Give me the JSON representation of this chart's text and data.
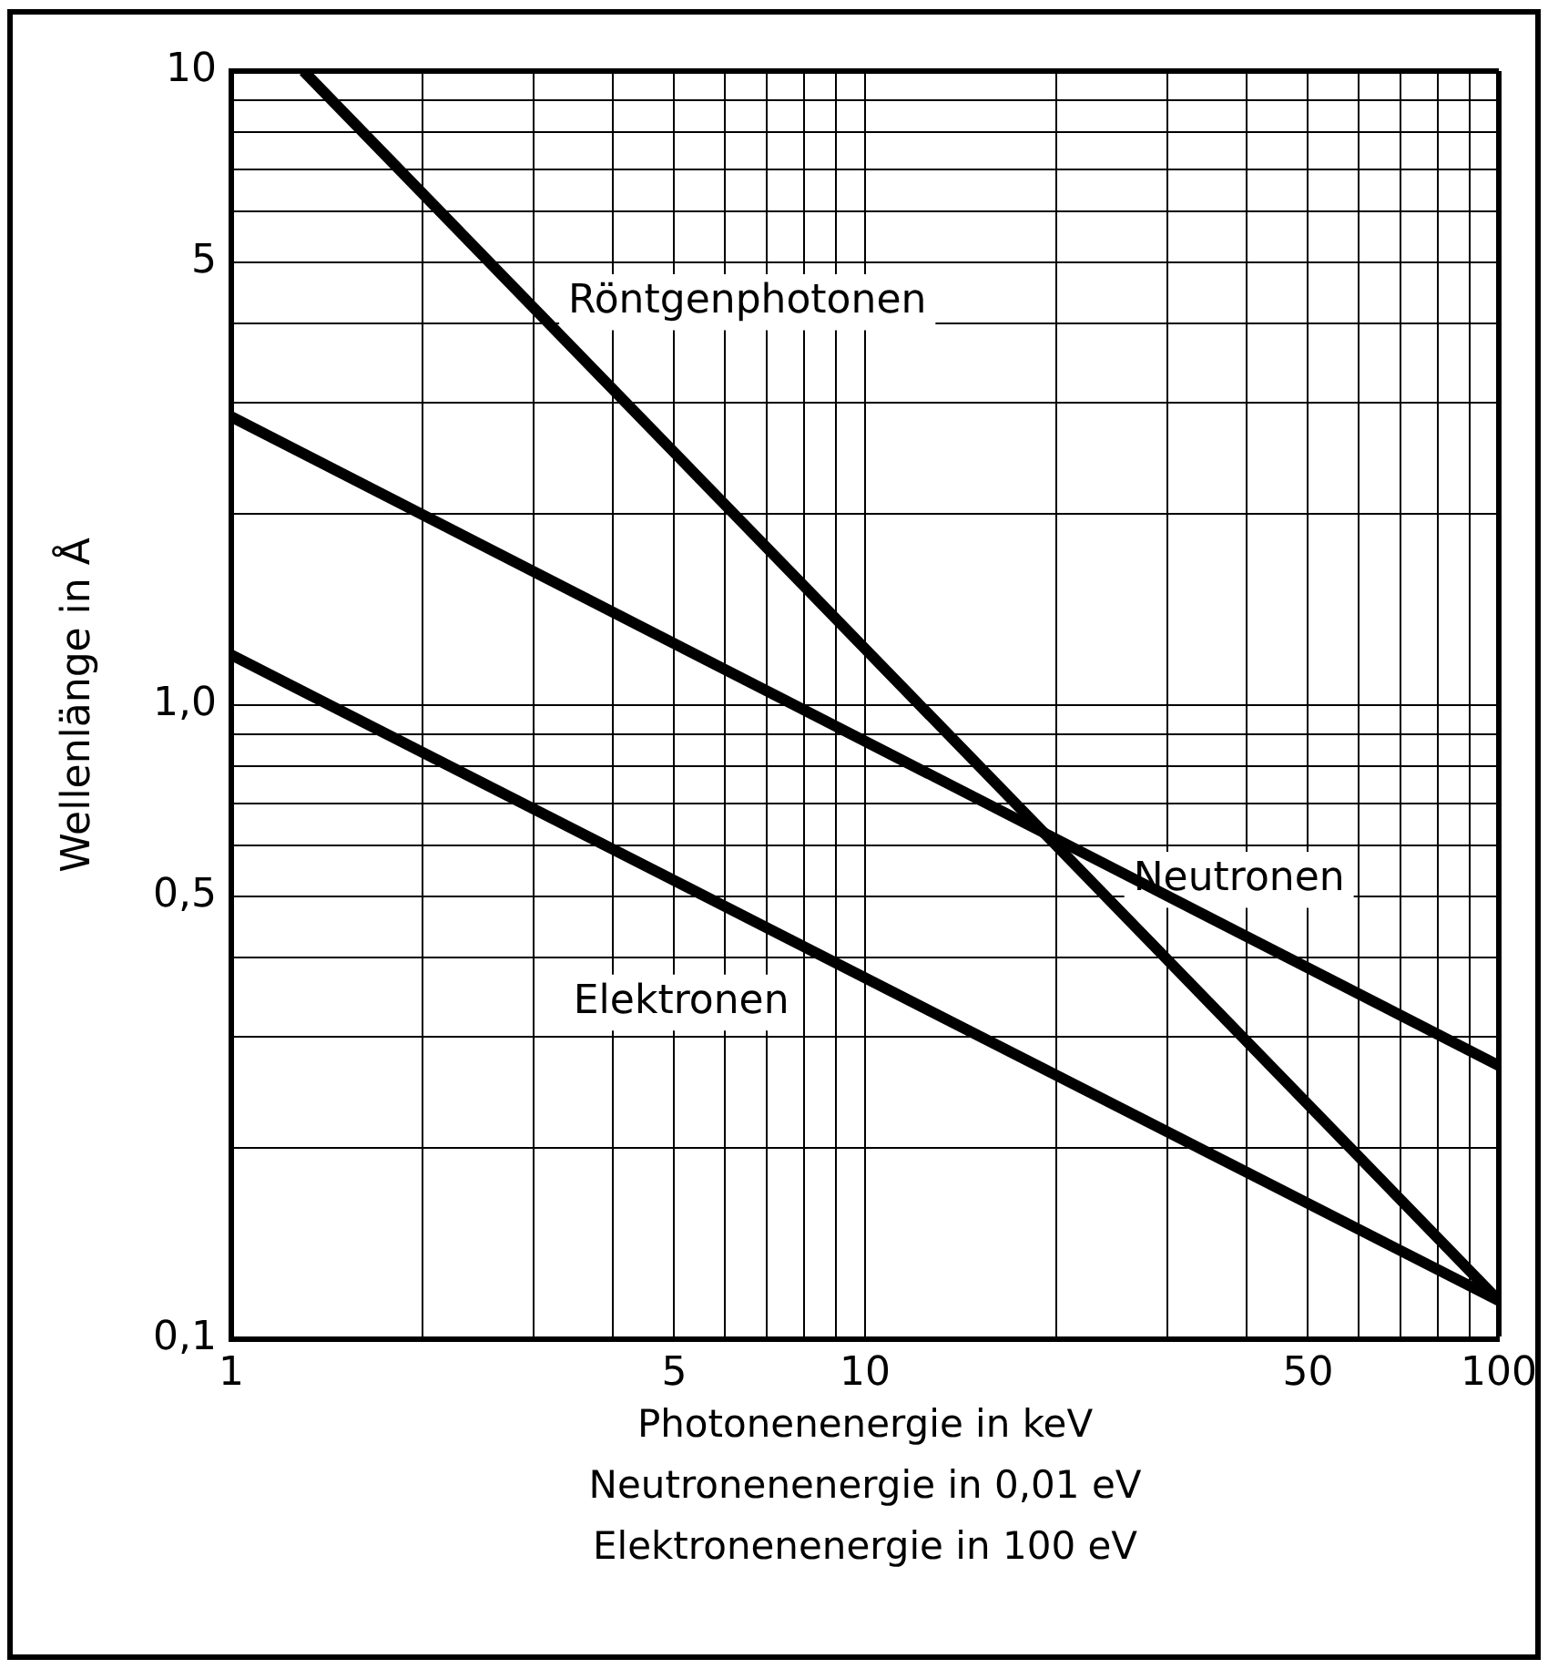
{
  "chart_data": {
    "type": "line",
    "xlabel": "Photonenenergie in keV\nNeutronenenergie in 0,01 eV\nElektronenenergie in 100 eV",
    "ylabel": "Wellenlänge in Å",
    "log": "xy",
    "xlim": [
      1,
      100
    ],
    "ylim": [
      0.1,
      10
    ],
    "xticks": [
      1,
      {
        "value": 2,
        "label": null
      },
      {
        "value": 3,
        "label": null
      },
      {
        "value": 4,
        "label": null
      },
      5,
      {
        "value": 6,
        "label": null
      },
      {
        "value": 7,
        "label": null
      },
      {
        "value": 8,
        "label": null
      },
      {
        "value": 9,
        "label": null
      },
      10,
      {
        "value": 20,
        "label": null
      },
      {
        "value": 30,
        "label": null
      },
      {
        "value": 40,
        "label": null
      },
      50,
      {
        "value": 60,
        "label": null
      },
      {
        "value": 70,
        "label": null
      },
      {
        "value": 80,
        "label": null
      },
      {
        "value": 90,
        "label": null
      },
      100
    ],
    "yticks": [
      {
        "value": 0.1,
        "label": "0,1"
      },
      {
        "value": 0.2,
        "label": null
      },
      {
        "value": 0.3,
        "label": null
      },
      {
        "value": 0.4,
        "label": null
      },
      {
        "value": 0.5,
        "label": "0,5"
      },
      {
        "value": 0.6,
        "label": null
      },
      {
        "value": 0.7,
        "label": null
      },
      {
        "value": 0.8,
        "label": null
      },
      {
        "value": 0.9,
        "label": null
      },
      {
        "value": 1,
        "label": "1,0"
      },
      {
        "value": 2,
        "label": null
      },
      {
        "value": 3,
        "label": null
      },
      {
        "value": 4,
        "label": null
      },
      5,
      {
        "value": 6,
        "label": null
      },
      {
        "value": 7,
        "label": null
      },
      {
        "value": 8,
        "label": null
      },
      {
        "value": 9,
        "label": null
      },
      10
    ],
    "grid": true,
    "legend": false,
    "series": [
      {
        "name": "Röntgenphotonen",
        "color": "#000000",
        "x": [
          1.3,
          100
        ],
        "values": [
          10,
          0.115
        ]
      },
      {
        "name": "Neutronen",
        "color": "#000000",
        "x": [
          1,
          100
        ],
        "values": [
          2.85,
          0.27
        ]
      },
      {
        "name": "Elektronen",
        "color": "#000000",
        "x": [
          1,
          100
        ],
        "values": [
          1.2,
          0.115
        ]
      }
    ]
  }
}
